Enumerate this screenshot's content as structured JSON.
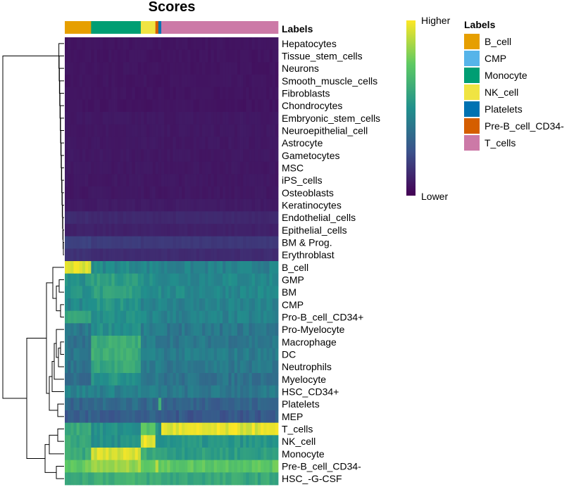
{
  "chart_data": {
    "type": "heatmap",
    "title": "Scores",
    "annotation_label": "Labels",
    "column_groups": [
      {
        "label": "B_cell",
        "count": 9,
        "color": "#E69F00"
      },
      {
        "label": "Monocyte",
        "count": 17,
        "color": "#009E73"
      },
      {
        "label": "NK_cell",
        "count": 5,
        "color": "#F0E442"
      },
      {
        "label": "Pre-B_cell_CD34-",
        "count": 1,
        "color": "#D55E00"
      },
      {
        "label": "Platelets",
        "count": 1,
        "color": "#0072B2"
      },
      {
        "label": "T_cells",
        "count": 40,
        "color": "#CC79A7"
      }
    ],
    "rows": [
      {
        "label": "Hepatocytes",
        "scores": [
          0.06,
          0.06,
          0.06,
          0.06,
          0.06,
          0.06
        ]
      },
      {
        "label": "Tissue_stem_cells",
        "scores": [
          0.06,
          0.06,
          0.06,
          0.06,
          0.06,
          0.06
        ]
      },
      {
        "label": "Neurons",
        "scores": [
          0.06,
          0.06,
          0.06,
          0.06,
          0.06,
          0.06
        ]
      },
      {
        "label": "Smooth_muscle_cells",
        "scores": [
          0.06,
          0.06,
          0.06,
          0.06,
          0.06,
          0.06
        ]
      },
      {
        "label": "Fibroblasts",
        "scores": [
          0.06,
          0.06,
          0.06,
          0.06,
          0.06,
          0.06
        ]
      },
      {
        "label": "Chondrocytes",
        "scores": [
          0.06,
          0.06,
          0.06,
          0.06,
          0.06,
          0.06
        ]
      },
      {
        "label": "Embryonic_stem_cells",
        "scores": [
          0.07,
          0.07,
          0.07,
          0.07,
          0.07,
          0.07
        ]
      },
      {
        "label": "Neuroepithelial_cell",
        "scores": [
          0.07,
          0.07,
          0.07,
          0.07,
          0.07,
          0.07
        ]
      },
      {
        "label": "Astrocyte",
        "scores": [
          0.07,
          0.07,
          0.07,
          0.07,
          0.07,
          0.07
        ]
      },
      {
        "label": "Gametocytes",
        "scores": [
          0.07,
          0.07,
          0.07,
          0.07,
          0.07,
          0.07
        ]
      },
      {
        "label": "MSC",
        "scores": [
          0.07,
          0.07,
          0.07,
          0.07,
          0.07,
          0.07
        ]
      },
      {
        "label": "iPS_cells",
        "scores": [
          0.07,
          0.07,
          0.07,
          0.07,
          0.07,
          0.07
        ]
      },
      {
        "label": "Osteoblasts",
        "scores": [
          0.07,
          0.07,
          0.07,
          0.07,
          0.07,
          0.07
        ]
      },
      {
        "label": "Keratinocytes",
        "scores": [
          0.08,
          0.08,
          0.08,
          0.08,
          0.08,
          0.08
        ]
      },
      {
        "label": "Endothelial_cells",
        "scores": [
          0.13,
          0.12,
          0.12,
          0.12,
          0.12,
          0.12
        ]
      },
      {
        "label": "Epithelial_cells",
        "scores": [
          0.1,
          0.1,
          0.1,
          0.1,
          0.1,
          0.1
        ]
      },
      {
        "label": "BM & Prog.",
        "scores": [
          0.2,
          0.18,
          0.17,
          0.17,
          0.17,
          0.17
        ]
      },
      {
        "label": "Erythroblast",
        "scores": [
          0.15,
          0.13,
          0.13,
          0.13,
          0.13,
          0.13
        ]
      },
      {
        "label": "B_cell",
        "scores": [
          0.96,
          0.48,
          0.46,
          0.5,
          0.45,
          0.44
        ]
      },
      {
        "label": "GMP",
        "scores": [
          0.5,
          0.56,
          0.5,
          0.5,
          0.5,
          0.47
        ]
      },
      {
        "label": "BM",
        "scores": [
          0.52,
          0.56,
          0.5,
          0.5,
          0.5,
          0.47
        ]
      },
      {
        "label": "CMP",
        "scores": [
          0.46,
          0.52,
          0.46,
          0.46,
          0.46,
          0.44
        ]
      },
      {
        "label": "Pro-B_cell_CD34+",
        "scores": [
          0.58,
          0.5,
          0.46,
          0.46,
          0.46,
          0.44
        ]
      },
      {
        "label": "Pro-Myelocyte",
        "scores": [
          0.4,
          0.5,
          0.42,
          0.42,
          0.42,
          0.4
        ]
      },
      {
        "label": "Macrophage",
        "scores": [
          0.38,
          0.62,
          0.42,
          0.42,
          0.42,
          0.4
        ]
      },
      {
        "label": "DC",
        "scores": [
          0.4,
          0.62,
          0.44,
          0.44,
          0.44,
          0.42
        ]
      },
      {
        "label": "Neutrophils",
        "scores": [
          0.38,
          0.6,
          0.42,
          0.42,
          0.42,
          0.4
        ]
      },
      {
        "label": "Myelocyte",
        "scores": [
          0.36,
          0.52,
          0.4,
          0.4,
          0.4,
          0.38
        ]
      },
      {
        "label": "HSC_CD34+",
        "scores": [
          0.44,
          0.44,
          0.42,
          0.42,
          0.42,
          0.4
        ]
      },
      {
        "label": "Platelets",
        "scores": [
          0.32,
          0.36,
          0.34,
          0.34,
          0.66,
          0.32
        ]
      },
      {
        "label": "MEP",
        "scores": [
          0.3,
          0.3,
          0.3,
          0.3,
          0.3,
          0.28
        ]
      },
      {
        "label": "T_cells",
        "scores": [
          0.62,
          0.5,
          0.72,
          0.55,
          0.5,
          0.95
        ]
      },
      {
        "label": "NK_cell",
        "scores": [
          0.6,
          0.5,
          0.95,
          0.55,
          0.5,
          0.52
        ]
      },
      {
        "label": "Monocyte",
        "scores": [
          0.6,
          0.94,
          0.62,
          0.6,
          0.6,
          0.56
        ]
      },
      {
        "label": "Pre-B_cell_CD34-",
        "scores": [
          0.76,
          0.84,
          0.78,
          0.9,
          0.76,
          0.74
        ]
      },
      {
        "label": "HSC_-G-CSF",
        "scores": [
          0.62,
          0.64,
          0.62,
          0.62,
          0.62,
          0.6
        ]
      }
    ],
    "color_scale": {
      "name": "viridis",
      "high_label": "Higher",
      "low_label": "Lower"
    },
    "legend": {
      "title": "Labels",
      "items": [
        {
          "label": "B_cell",
          "color": "#E69F00"
        },
        {
          "label": "CMP",
          "color": "#56B4E9"
        },
        {
          "label": "Monocyte",
          "color": "#009E73"
        },
        {
          "label": "NK_cell",
          "color": "#F0E442"
        },
        {
          "label": "Platelets",
          "color": "#0072B2"
        },
        {
          "label": "Pre-B_cell_CD34-",
          "color": "#D55E00"
        },
        {
          "label": "T_cells",
          "color": "#CC79A7"
        }
      ],
      "position": "right"
    }
  }
}
